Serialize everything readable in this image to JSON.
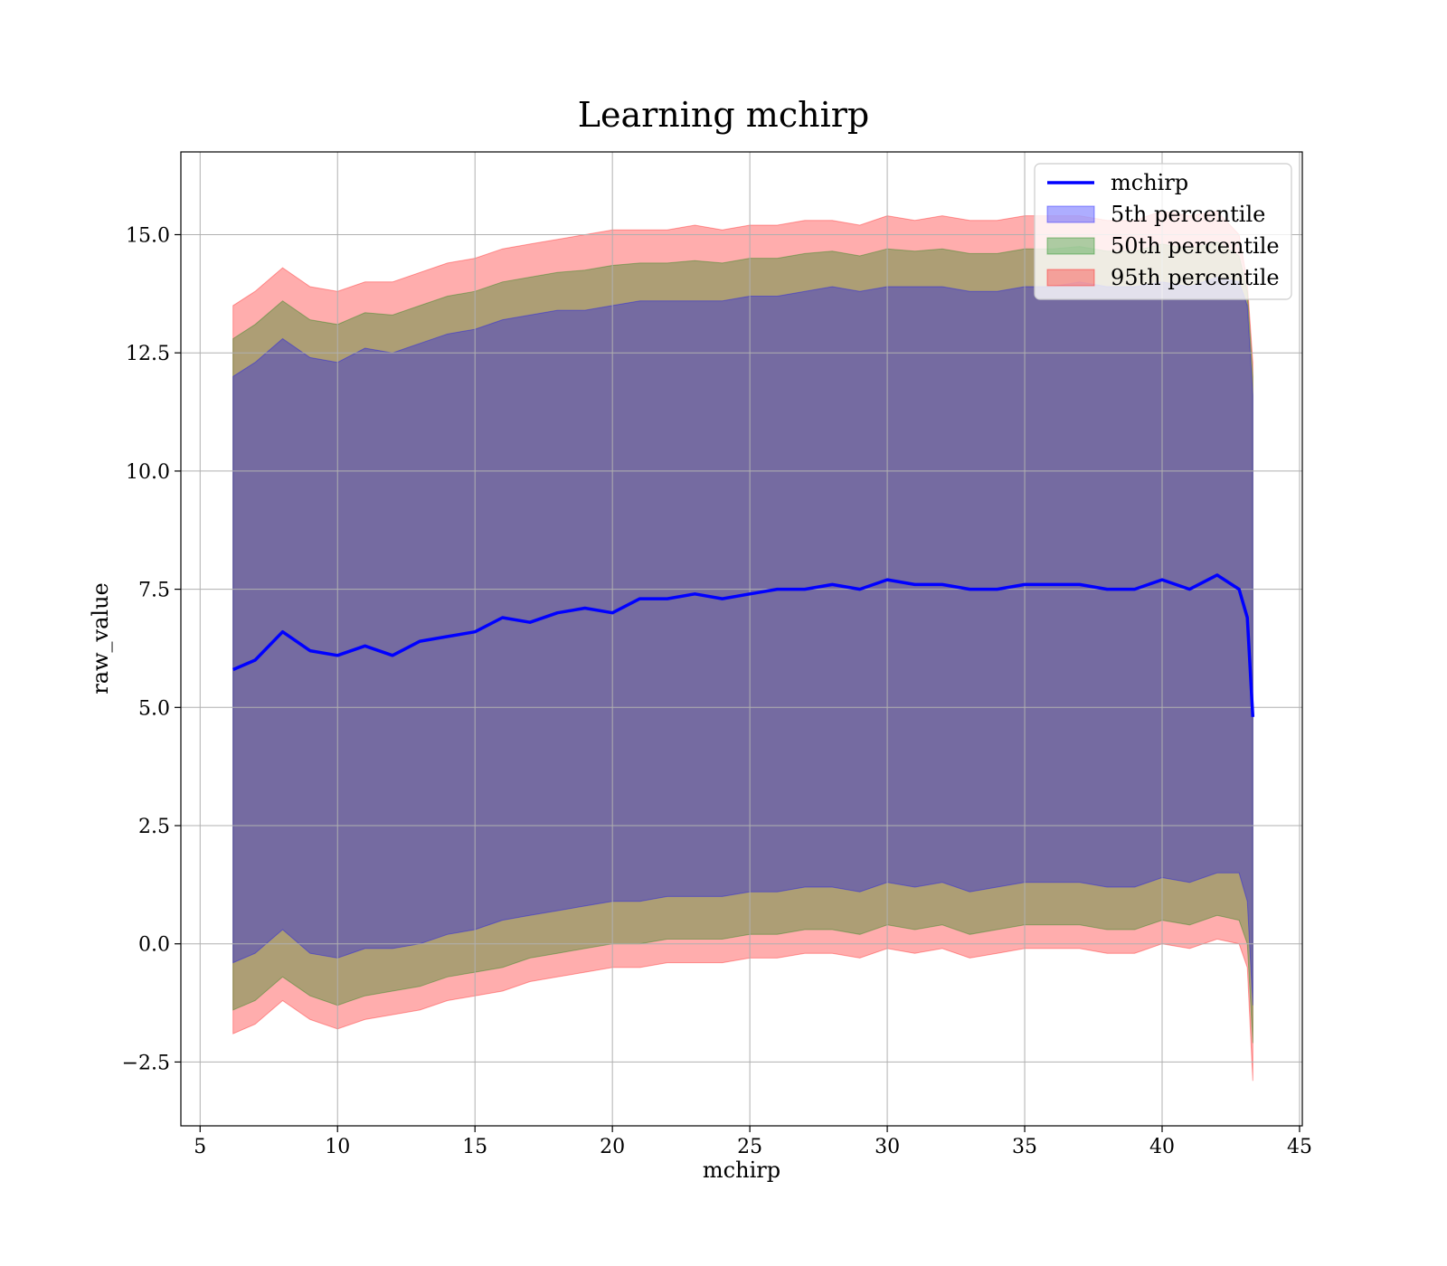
{
  "chart_data": {
    "type": "area",
    "title": "Learning mchirp",
    "xlabel": "mchirp",
    "ylabel": "raw_value",
    "xlim": [
      4.3,
      45.1
    ],
    "ylim": [
      -3.85,
      16.75
    ],
    "xticks": [
      5,
      10,
      15,
      20,
      25,
      30,
      35,
      40,
      45
    ],
    "yticks": [
      -2.5,
      0.0,
      2.5,
      5.0,
      7.5,
      10.0,
      12.5,
      15.0
    ],
    "ytick_labels": [
      "−2.5",
      "0.0",
      "2.5",
      "5.0",
      "7.5",
      "10.0",
      "12.5",
      "15.0"
    ],
    "grid": true,
    "legend_position": "upper right",
    "colors": {
      "line": "#0000ff",
      "band_5": "#0000ff",
      "band_50": "#008000",
      "band_95": "#ff0000"
    },
    "x": [
      6.2,
      7.0,
      8.0,
      9.0,
      10.0,
      11.0,
      12.0,
      13.0,
      14.0,
      15.0,
      16.0,
      17.0,
      18.0,
      19.0,
      20.0,
      21.0,
      22.0,
      23.0,
      24.0,
      25.0,
      26.0,
      27.0,
      28.0,
      29.0,
      30.0,
      31.0,
      32.0,
      33.0,
      34.0,
      35.0,
      36.0,
      37.0,
      38.0,
      39.0,
      40.0,
      41.0,
      42.0,
      42.8,
      43.1,
      43.3
    ],
    "series": [
      {
        "name": "mchirp",
        "kind": "line",
        "values": [
          5.8,
          6.0,
          6.6,
          6.2,
          6.1,
          6.3,
          6.1,
          6.4,
          6.5,
          6.6,
          6.9,
          6.8,
          7.0,
          7.1,
          7.0,
          7.3,
          7.3,
          7.4,
          7.3,
          7.4,
          7.5,
          7.5,
          7.6,
          7.5,
          7.7,
          7.6,
          7.6,
          7.5,
          7.5,
          7.6,
          7.6,
          7.6,
          7.5,
          7.5,
          7.7,
          7.5,
          7.8,
          7.5,
          6.9,
          4.8
        ]
      },
      {
        "name": "5th percentile",
        "kind": "band",
        "lower": [
          -0.4,
          -0.2,
          0.3,
          -0.2,
          -0.3,
          -0.1,
          -0.1,
          0.0,
          0.2,
          0.3,
          0.5,
          0.6,
          0.7,
          0.8,
          0.9,
          0.9,
          1.0,
          1.0,
          1.0,
          1.1,
          1.1,
          1.2,
          1.2,
          1.1,
          1.3,
          1.2,
          1.3,
          1.1,
          1.2,
          1.3,
          1.3,
          1.3,
          1.2,
          1.2,
          1.4,
          1.3,
          1.5,
          1.5,
          0.9,
          -1.3
        ],
        "upper": [
          12.0,
          12.3,
          12.8,
          12.4,
          12.3,
          12.6,
          12.5,
          12.7,
          12.9,
          13.0,
          13.2,
          13.3,
          13.4,
          13.4,
          13.5,
          13.6,
          13.6,
          13.6,
          13.6,
          13.7,
          13.7,
          13.8,
          13.9,
          13.8,
          13.9,
          13.9,
          13.9,
          13.8,
          13.8,
          13.9,
          13.9,
          14.0,
          13.9,
          13.9,
          14.0,
          13.9,
          14.1,
          14.0,
          13.5,
          11.6
        ]
      },
      {
        "name": "50th percentile",
        "kind": "band",
        "lower": [
          -1.4,
          -1.2,
          -0.7,
          -1.1,
          -1.3,
          -1.1,
          -1.0,
          -0.9,
          -0.7,
          -0.6,
          -0.5,
          -0.3,
          -0.2,
          -0.1,
          0.0,
          0.0,
          0.1,
          0.1,
          0.1,
          0.2,
          0.2,
          0.3,
          0.3,
          0.2,
          0.4,
          0.3,
          0.4,
          0.2,
          0.3,
          0.4,
          0.4,
          0.4,
          0.3,
          0.3,
          0.5,
          0.4,
          0.6,
          0.5,
          0.0,
          -2.1
        ]
      },
      {
        "name": "95th percentile",
        "kind": "band",
        "lower": [
          -1.9,
          -1.7,
          -1.2,
          -1.6,
          -1.8,
          -1.6,
          -1.5,
          -1.4,
          -1.2,
          -1.1,
          -1.0,
          -0.8,
          -0.7,
          -0.6,
          -0.5,
          -0.5,
          -0.4,
          -0.4,
          -0.4,
          -0.3,
          -0.3,
          -0.2,
          -0.2,
          -0.3,
          -0.1,
          -0.2,
          -0.1,
          -0.3,
          -0.2,
          -0.1,
          -0.1,
          -0.1,
          -0.2,
          -0.2,
          0.0,
          -0.1,
          0.1,
          0.0,
          -0.5,
          -2.9
        ],
        "upper": [
          13.5,
          13.8,
          14.3,
          13.9,
          13.8,
          14.0,
          14.0,
          14.2,
          14.4,
          14.5,
          14.7,
          14.8,
          14.9,
          15.0,
          15.1,
          15.1,
          15.1,
          15.2,
          15.1,
          15.2,
          15.2,
          15.3,
          15.3,
          15.2,
          15.4,
          15.3,
          15.4,
          15.3,
          15.3,
          15.4,
          15.4,
          15.4,
          15.3,
          15.3,
          15.5,
          15.4,
          15.5,
          15.0,
          14.0,
          12.3
        ]
      }
    ],
    "legend": [
      "mchirp",
      "5th percentile",
      "50th percentile",
      "95th percentile"
    ]
  }
}
